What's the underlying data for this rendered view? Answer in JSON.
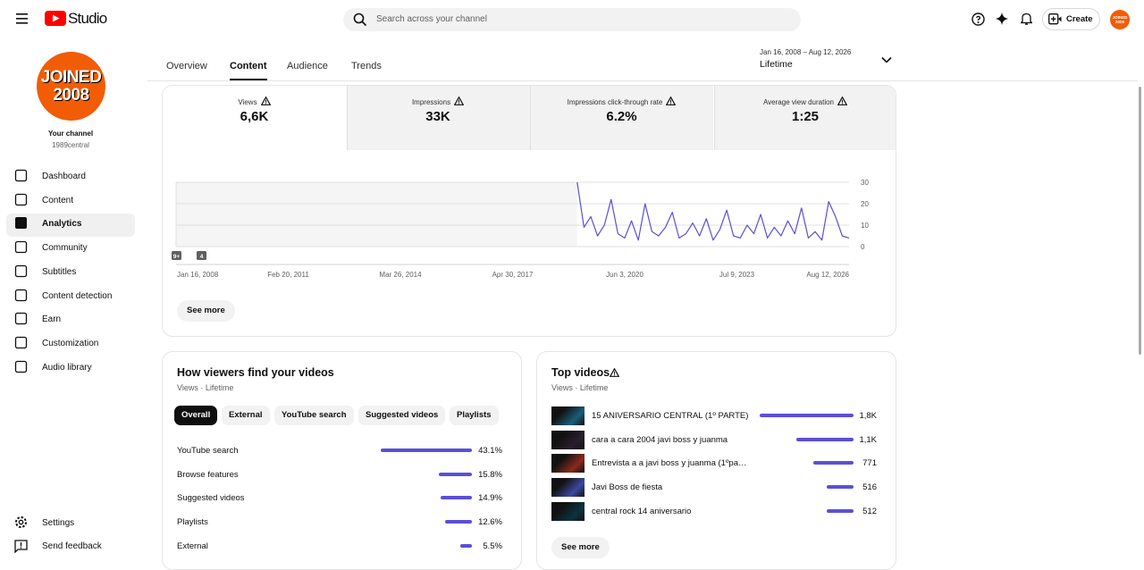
{
  "header": {
    "logo": "Studio",
    "search_placeholder": "Search across your channel",
    "create": "Create",
    "avatar": "JOINED 2008"
  },
  "sidebar": {
    "avatar_lines": [
      "JOINED",
      "2008"
    ],
    "channel_title": "Your channel",
    "channel_handle": "1989central",
    "nav": [
      "Dashboard",
      "Content",
      "Analytics",
      "Community",
      "Subtitles",
      "Content detection",
      "Earn",
      "Customization",
      "Audio library"
    ],
    "active": 2,
    "bottom": [
      "Settings",
      "Send feedback"
    ]
  },
  "tabs": {
    "items": [
      "Overview",
      "Content",
      "Audience",
      "Trends"
    ],
    "active": 1
  },
  "date_range": {
    "range": "Jan 16, 2008 – Aug 12, 2026",
    "label": "Lifetime"
  },
  "metrics": [
    {
      "label": "Views",
      "value": "6,6K"
    },
    {
      "label": "Impressions",
      "value": "33K"
    },
    {
      "label": "Impressions click-through rate",
      "value": "6.2%"
    },
    {
      "label": "Average view duration",
      "value": "1:25"
    }
  ],
  "selected_metric": 0,
  "chart_data": {
    "type": "line",
    "color": "#5b4fd9",
    "x_labels": [
      "Jan 16, 2008",
      "Feb 20, 2011",
      "Mar 26, 2014",
      "Apr 30, 2017",
      "Jun 3, 2020",
      "Jul 9, 2023",
      "Aug 12, 2026"
    ],
    "values": [
      null,
      null,
      null,
      null,
      null,
      null,
      null,
      null,
      null,
      null,
      null,
      null,
      null,
      null,
      null,
      null,
      null,
      null,
      null,
      null,
      null,
      null,
      null,
      null,
      null,
      null,
      null,
      null,
      null,
      null,
      null,
      null,
      null,
      null,
      null,
      null,
      null,
      null,
      null,
      null,
      null,
      null,
      null,
      null,
      null,
      null,
      null,
      null,
      null,
      null,
      null,
      null,
      null,
      null,
      null,
      null,
      null,
      null,
      null,
      30,
      9,
      14,
      5,
      10,
      22,
      6,
      4,
      12,
      3,
      20,
      7,
      5,
      9,
      16,
      4,
      6,
      11,
      5,
      13,
      3,
      8,
      17,
      5,
      4,
      10,
      6,
      15,
      4,
      9,
      5,
      12,
      6,
      18,
      4,
      7,
      3,
      21,
      14,
      5,
      4
    ],
    "ylim": [
      0,
      30
    ],
    "yticks": [
      0,
      10,
      20,
      30
    ],
    "grid": true,
    "markers": [
      "9+",
      "4"
    ]
  },
  "see_more": "See more",
  "traffic": {
    "title": "How viewers find your videos",
    "subtitle": "Views · Lifetime",
    "filters": [
      "Overall",
      "External",
      "YouTube search",
      "Suggested videos",
      "Playlists"
    ],
    "active_filter": 0,
    "sources": [
      "YouTube search",
      "Browse features",
      "Suggested videos",
      "Playlists",
      "External"
    ],
    "values": [
      43.1,
      15.8,
      14.9,
      12.6,
      5.5
    ],
    "value_labels": [
      "43.1%",
      "15.8%",
      "14.9%",
      "12.6%",
      "5.5%"
    ],
    "color": "#5b4fd9"
  },
  "top_videos": {
    "title": "Top videos",
    "subtitle": "Views · Lifetime",
    "titles": [
      "15 ANIVERSARIO CENTRAL (1º PARTE)",
      "cara a cara 2004 javi boss y juanma",
      "Entrevista a a javi boss y juanma (1ºpa…",
      "Javi Boss de fiesta",
      "central rock 14 aniversario"
    ],
    "values": [
      1800,
      1100,
      771,
      516,
      512
    ],
    "value_labels": [
      "1,8K",
      "1,1K",
      "771",
      "516",
      "512"
    ],
    "color": "#5b4fd9",
    "see_more": "See more"
  }
}
